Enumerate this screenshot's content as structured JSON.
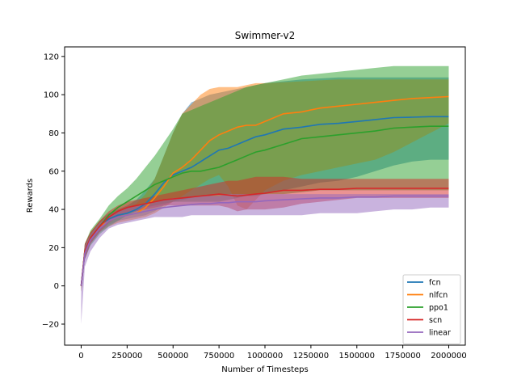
{
  "chart_data": {
    "type": "line",
    "title": "Swimmer-v2",
    "xlabel": "Number of Timesteps",
    "ylabel": "Rewards",
    "xlim": [
      -90000,
      2090000
    ],
    "ylim": [
      -31,
      125
    ],
    "xticks": [
      0,
      250000,
      500000,
      750000,
      1000000,
      1250000,
      1500000,
      1750000,
      2000000
    ],
    "xtick_labels": [
      "0",
      "250000",
      "500000",
      "750000",
      "1000000",
      "1250000",
      "1500000",
      "1750000",
      "2000000"
    ],
    "yticks": [
      -20,
      0,
      20,
      40,
      60,
      80,
      100,
      120
    ],
    "ytick_labels": [
      "−20",
      "0",
      "20",
      "40",
      "60",
      "80",
      "100",
      "120"
    ],
    "grid": false,
    "legend_position": "lower-right",
    "x": [
      0,
      20000,
      50000,
      100000,
      150000,
      200000,
      250000,
      300000,
      350000,
      400000,
      450000,
      500000,
      550000,
      600000,
      650000,
      700000,
      750000,
      800000,
      850000,
      900000,
      950000,
      1000000,
      1100000,
      1200000,
      1300000,
      1400000,
      1500000,
      1600000,
      1700000,
      1800000,
      1900000,
      2000000
    ],
    "series": [
      {
        "name": "fcn",
        "color": "#1f77b4",
        "values": [
          0,
          18,
          25,
          31,
          35,
          37,
          38,
          40,
          43,
          48,
          54,
          58,
          60,
          62,
          65,
          68,
          71,
          72,
          74,
          76,
          78,
          79,
          82,
          83,
          84.5,
          85,
          86,
          87,
          88,
          88.2,
          88.5,
          88.5
        ],
        "upper": [
          3,
          22,
          28,
          34,
          38,
          40,
          42,
          45,
          50,
          56,
          68,
          80,
          90,
          96,
          98,
          100,
          101,
          102,
          103,
          104,
          105,
          106,
          107,
          108,
          108.5,
          109,
          109,
          109,
          109,
          109,
          109,
          109
        ],
        "lower": [
          -3,
          14,
          22,
          28,
          32,
          34,
          35,
          36,
          37,
          39,
          42,
          44,
          45,
          46,
          47,
          47,
          48,
          48,
          48,
          48,
          48,
          48,
          50,
          52,
          54,
          55,
          57,
          60,
          63,
          65,
          66,
          66
        ]
      },
      {
        "name": "nlfcn",
        "color": "#ff7f0e",
        "values": [
          0,
          18,
          25,
          31,
          34,
          36,
          37,
          38,
          41,
          46,
          52,
          59,
          62,
          66,
          71,
          76,
          79,
          81,
          83,
          84,
          84,
          86,
          90,
          91,
          93,
          94,
          95,
          96,
          97,
          98,
          98.5,
          99
        ],
        "upper": [
          3,
          22,
          28,
          34,
          37,
          39,
          41,
          43,
          48,
          56,
          68,
          80,
          90,
          95,
          100,
          103,
          104,
          104,
          104,
          105,
          106,
          106,
          106.5,
          107,
          107.5,
          108,
          108,
          108,
          108,
          108,
          108,
          108
        ],
        "lower": [
          -3,
          14,
          22,
          28,
          31,
          33,
          34,
          35,
          36,
          38,
          41,
          44,
          47,
          50,
          53,
          56,
          58,
          52,
          42,
          40,
          45,
          50,
          55,
          58,
          60,
          62,
          64,
          66,
          70,
          75,
          80,
          85
        ]
      },
      {
        "name": "ppo1",
        "color": "#2ca02c",
        "values": [
          0,
          18,
          25,
          31,
          37,
          41,
          44,
          47,
          50,
          53,
          55,
          57,
          59,
          60,
          60,
          61,
          62,
          64,
          66,
          68,
          70,
          71,
          74,
          77,
          78,
          79,
          80,
          81,
          82.5,
          83,
          83.5,
          83.5
        ],
        "upper": [
          2,
          22,
          29,
          35,
          42,
          47,
          51,
          56,
          62,
          68,
          75,
          82,
          90,
          92,
          94,
          96,
          98,
          100,
          102,
          104,
          105,
          106,
          108,
          110,
          111,
          112,
          113,
          114,
          115,
          115,
          115,
          115
        ],
        "lower": [
          -3,
          14,
          21,
          27,
          31,
          34,
          37,
          39,
          41,
          42,
          43,
          44,
          44,
          44,
          44,
          44,
          44,
          45,
          46,
          47,
          47,
          48,
          48,
          49,
          50,
          50,
          50,
          50,
          50,
          50,
          50,
          50
        ]
      },
      {
        "name": "scn",
        "color": "#d62728",
        "values": [
          0,
          18,
          25,
          31,
          36,
          39,
          41,
          42,
          43,
          44,
          45,
          45.5,
          46,
          46.5,
          47,
          47.5,
          48,
          47.5,
          47,
          47.5,
          48,
          48.5,
          50,
          50,
          50.5,
          50.5,
          51,
          51,
          51,
          51,
          51,
          51
        ],
        "upper": [
          3,
          22,
          28,
          34,
          39,
          42,
          44,
          45,
          46,
          47,
          48,
          49,
          50,
          51,
          52,
          53,
          54,
          55,
          55,
          56,
          57,
          57,
          57,
          56,
          56,
          56,
          56,
          56,
          56,
          56,
          56,
          56
        ],
        "lower": [
          -3,
          14,
          22,
          28,
          33,
          36,
          38,
          39,
          40,
          41,
          42,
          42,
          42,
          42,
          42,
          42,
          42,
          41,
          39,
          40,
          40,
          40,
          41,
          43,
          44,
          45,
          46,
          46,
          46,
          46,
          46,
          46
        ]
      },
      {
        "name": "linear",
        "color": "#9467bd",
        "values": [
          0,
          17,
          24,
          30,
          34,
          36,
          37,
          38,
          39,
          40,
          41,
          41.5,
          42,
          42.5,
          43,
          43,
          43.5,
          43.5,
          44,
          44,
          44,
          44.5,
          45,
          45.5,
          46,
          46,
          46.5,
          46.5,
          47,
          47,
          47,
          47
        ],
        "upper": [
          2,
          21,
          27,
          33,
          37,
          39,
          41,
          42,
          43,
          44,
          45,
          46,
          46,
          47,
          47,
          47,
          47,
          48,
          48,
          48,
          48,
          48,
          48,
          48,
          48,
          48,
          48,
          48,
          48,
          48,
          48,
          48
        ],
        "lower": [
          -20,
          10,
          18,
          25,
          30,
          32,
          33,
          34,
          35,
          36,
          36,
          36,
          36,
          37,
          37,
          37,
          37,
          37,
          37,
          37,
          37,
          37,
          37,
          37,
          38,
          38,
          38,
          39,
          40,
          40,
          41,
          41
        ]
      }
    ]
  }
}
